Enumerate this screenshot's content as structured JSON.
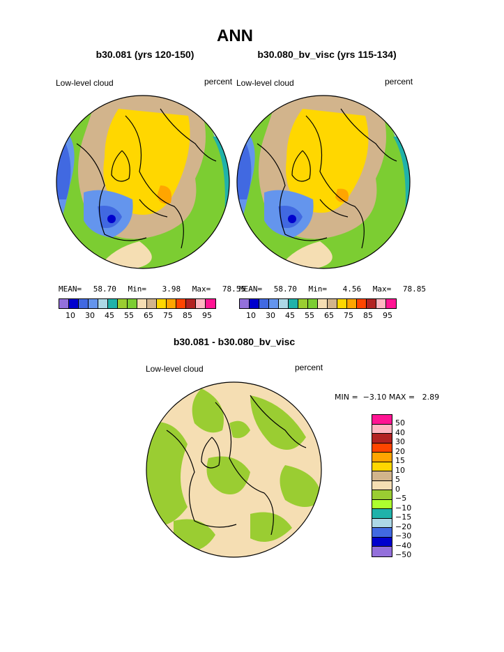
{
  "title": "ANN",
  "panels": [
    {
      "run_title": "b30.081 (yrs 120-150)",
      "variable": "Low-level cloud",
      "units": "percent",
      "stats": {
        "mean_label": "MEAN=",
        "mean": "58.70",
        "min_label": "Min=",
        "min": "3.98",
        "max_label": "Max=",
        "max": "78.55"
      }
    },
    {
      "run_title": "b30.080_bv_visc (yrs 115-134)",
      "variable": "Low-level cloud",
      "units": "percent",
      "stats": {
        "mean_label": "MEAN=",
        "mean": "58.70",
        "min_label": "Min=",
        "min": "4.56",
        "max_label": "Max=",
        "max": "78.85"
      }
    }
  ],
  "field_colorbar": {
    "colors": [
      "#9370db",
      "#0000cd",
      "#4169e1",
      "#6495ed",
      "#add8e6",
      "#20b2aa",
      "#9acd32",
      "#7ccd32",
      "#f5deb3",
      "#d2b48c",
      "#ffd700",
      "#ffa500",
      "#ff4500",
      "#b22222",
      "#ffb6c1",
      "#ff1493"
    ],
    "tick_labels": [
      "10",
      "30",
      "45",
      "55",
      "65",
      "75",
      "85",
      "95"
    ]
  },
  "diff_panel": {
    "title": "b30.081 - b30.080_bv_visc",
    "variable": "Low-level cloud",
    "units": "percent",
    "stats_text": "MIN =  −3.10 MAX =   2.89"
  },
  "diff_colorbar": {
    "colors": [
      "#ff1493",
      "#ffb6c1",
      "#b22222",
      "#ff4500",
      "#ffa500",
      "#ffd700",
      "#d2b48c",
      "#f5deb3",
      "#9acd32",
      "#adff2f",
      "#20b2aa",
      "#add8e6",
      "#4169e1",
      "#0000cd",
      "#9370db"
    ],
    "labels": [
      "50",
      "40",
      "30",
      "20",
      "15",
      "10",
      "5",
      "0",
      "−5",
      "−10",
      "−15",
      "−20",
      "−30",
      "−40",
      "−50"
    ]
  }
}
